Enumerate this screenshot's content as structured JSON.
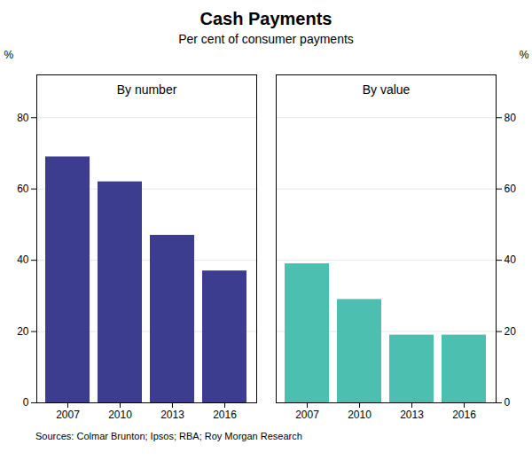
{
  "chart_data": {
    "type": "bar",
    "title": "Cash Payments",
    "subtitle": "Per cent of consumer payments",
    "source": "Sources: Colmar Brunton; Ipsos; RBA; Roy Morgan Research",
    "categories": [
      "2007",
      "2010",
      "2013",
      "2016"
    ],
    "series": [
      {
        "name": "By number",
        "color": "#3d3d8f",
        "values": [
          69,
          62,
          47,
          37
        ]
      },
      {
        "name": "By value",
        "color": "#4dbfb0",
        "values": [
          39,
          29,
          19,
          19
        ]
      }
    ],
    "ylabel": "%",
    "y2label": "%",
    "ylim": [
      0,
      92
    ],
    "yticks": [
      0,
      20,
      40,
      60,
      80
    ],
    "y2lim": [
      0,
      92
    ],
    "y2ticks": [
      0,
      20,
      40,
      60,
      80
    ],
    "grid": true
  }
}
